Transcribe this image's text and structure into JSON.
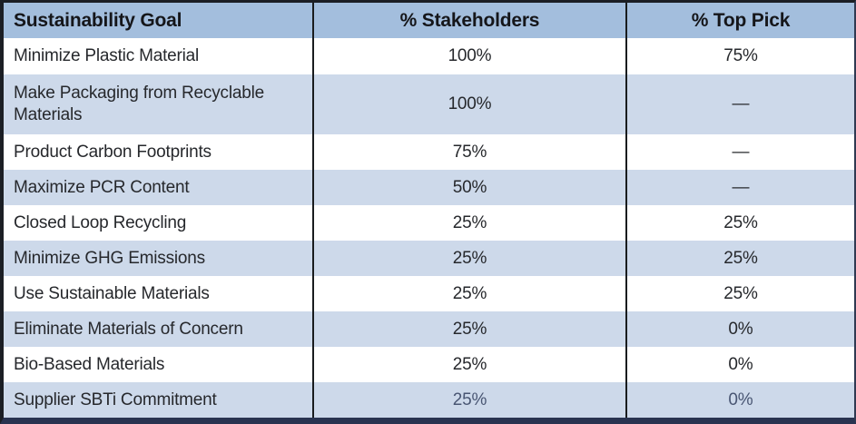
{
  "table": {
    "columns": [
      {
        "label": "Sustainability Goal"
      },
      {
        "label": "% Stakeholders"
      },
      {
        "label": "% Top Pick"
      }
    ],
    "rows": [
      {
        "goal": "Minimize Plastic Material",
        "stakeholders": "100%",
        "top_pick": "75%"
      },
      {
        "goal": "Make Packaging from Recyclable Materials",
        "stakeholders": "100%",
        "top_pick": "—"
      },
      {
        "goal": "Product Carbon Footprints",
        "stakeholders": "75%",
        "top_pick": "—"
      },
      {
        "goal": "Maximize PCR Content",
        "stakeholders": "50%",
        "top_pick": "—"
      },
      {
        "goal": "Closed Loop Recycling",
        "stakeholders": "25%",
        "top_pick": "25%"
      },
      {
        "goal": "Minimize GHG Emissions",
        "stakeholders": "25%",
        "top_pick": "25%"
      },
      {
        "goal": "Use Sustainable Materials",
        "stakeholders": "25%",
        "top_pick": "25%"
      },
      {
        "goal": "Eliminate Materials of Concern",
        "stakeholders": "25%",
        "top_pick": "0%"
      },
      {
        "goal": "Bio-Based Materials",
        "stakeholders": "25%",
        "top_pick": "0%"
      },
      {
        "goal": "Supplier SBTi Commitment",
        "stakeholders": "25%",
        "top_pick": "0%",
        "muted": true
      }
    ]
  },
  "colors": {
    "header_background": "#a3bedd",
    "row_alternate_background": "#cdd9ea",
    "row_background": "#ffffff",
    "divider": "#191c1e",
    "bottom_border": "#293350",
    "header_text": "#15161a",
    "body_text": "#26282c"
  },
  "chart_data": {
    "type": "table",
    "title": "",
    "columns": [
      "Sustainability Goal",
      "% Stakeholders",
      "% Top Pick"
    ],
    "rows": [
      [
        "Minimize Plastic Material",
        "100%",
        "75%"
      ],
      [
        "Make Packaging from Recyclable Materials",
        "100%",
        "—"
      ],
      [
        "Product Carbon Footprints",
        "75%",
        "—"
      ],
      [
        "Maximize PCR Content",
        "50%",
        "—"
      ],
      [
        "Closed Loop Recycling",
        "25%",
        "25%"
      ],
      [
        "Minimize GHG Emissions",
        "25%",
        "25%"
      ],
      [
        "Use Sustainable Materials",
        "25%",
        "25%"
      ],
      [
        "Eliminate Materials of Concern",
        "25%",
        "0%"
      ],
      [
        "Bio-Based Materials",
        "25%",
        "0%"
      ],
      [
        "Supplier SBTi Commitment",
        "25%",
        "0%"
      ]
    ],
    "stakeholders_values_pct": [
      100,
      100,
      75,
      50,
      25,
      25,
      25,
      25,
      25,
      25
    ],
    "top_pick_values_pct": [
      75,
      null,
      null,
      null,
      25,
      25,
      25,
      0,
      0,
      0
    ]
  }
}
